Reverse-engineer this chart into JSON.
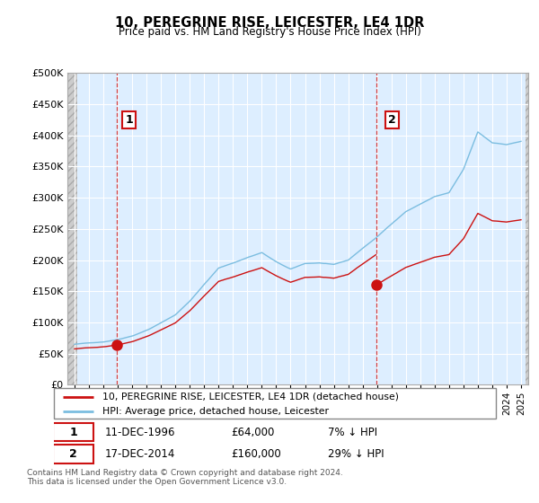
{
  "title": "10, PEREGRINE RISE, LEICESTER, LE4 1DR",
  "subtitle": "Price paid vs. HM Land Registry's House Price Index (HPI)",
  "ylim": [
    0,
    500000
  ],
  "yticks": [
    0,
    50000,
    100000,
    150000,
    200000,
    250000,
    300000,
    350000,
    400000,
    450000,
    500000
  ],
  "hpi_color": "#7bbde0",
  "price_color": "#cc1111",
  "legend_label_price": "10, PEREGRINE RISE, LEICESTER, LE4 1DR (detached house)",
  "legend_label_hpi": "HPI: Average price, detached house, Leicester",
  "sale1_label": "1",
  "sale1_date": "11-DEC-1996",
  "sale1_price": "£64,000",
  "sale1_hpi": "7% ↓ HPI",
  "sale2_label": "2",
  "sale2_date": "17-DEC-2014",
  "sale2_price": "£160,000",
  "sale2_hpi": "29% ↓ HPI",
  "footer": "Contains HM Land Registry data © Crown copyright and database right 2024.\nThis data is licensed under the Open Government Licence v3.0.",
  "sale1_year": 1996.95,
  "sale1_value": 64000,
  "sale2_year": 2014.95,
  "sale2_value": 160000,
  "plot_bg_color": "#ddeeff",
  "hatch_color": "#cccccc",
  "grid_color": "#ffffff",
  "annotation_box_color": "#cc1111"
}
